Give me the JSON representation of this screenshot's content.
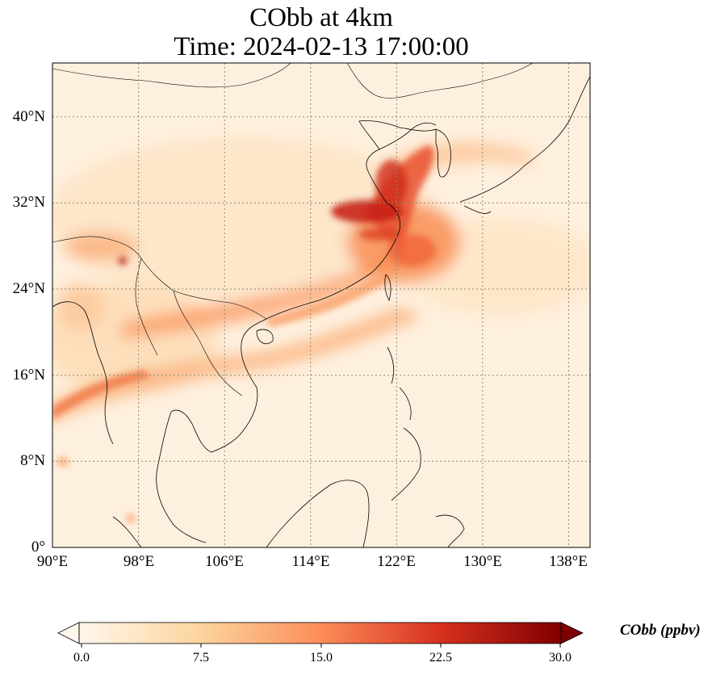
{
  "title_line1": "CObb at 4km",
  "title_line2": "Time: 2024-02-13 17:00:00",
  "colorbar": {
    "label": "CObb (ppbv)",
    "ticks": [
      "0.0",
      "7.5",
      "15.0",
      "22.5",
      "30.0"
    ],
    "min": 0,
    "max": 30,
    "colormap": "OrRd",
    "extend": "both",
    "colors": [
      "#fff7ec",
      "#fdd49e",
      "#fc8d59",
      "#d7301f",
      "#7f0000"
    ]
  },
  "map": {
    "lon_range": [
      90,
      140
    ],
    "lat_range": [
      0,
      45
    ],
    "x_ticks": [
      "90°E",
      "98°E",
      "106°E",
      "114°E",
      "122°E",
      "130°E",
      "138°E"
    ],
    "y_ticks": [
      "0°",
      "8°N",
      "16°N",
      "24°N",
      "32°N",
      "40°N"
    ],
    "gridlines": true,
    "gridline_color": "#8a8a6e"
  }
}
